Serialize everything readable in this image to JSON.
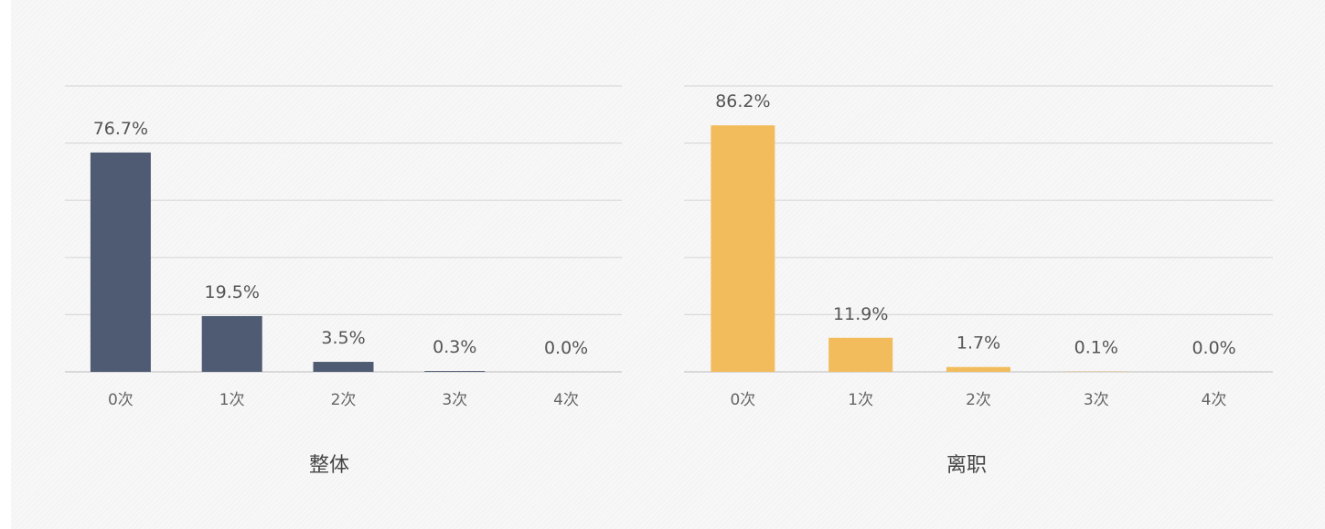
{
  "chart_data": [
    {
      "type": "bar",
      "title": "整体",
      "categories": [
        "0次",
        "1次",
        "2次",
        "3次",
        "4次"
      ],
      "values": [
        76.7,
        19.5,
        3.5,
        0.3,
        0.0
      ],
      "labels": [
        "76.7%",
        "19.5%",
        "3.5%",
        "0.3%",
        "0.0%"
      ],
      "ylim": [
        0,
        100
      ],
      "gridlines": [
        0,
        20,
        40,
        60,
        80,
        100
      ],
      "grid": true,
      "color": "#4e5b72"
    },
    {
      "type": "bar",
      "title": "离职",
      "categories": [
        "0次",
        "1次",
        "2次",
        "3次",
        "4次"
      ],
      "values": [
        86.2,
        11.9,
        1.7,
        0.1,
        0.0
      ],
      "labels": [
        "86.2%",
        "11.9%",
        "1.7%",
        "0.1%",
        "0.0%"
      ],
      "ylim": [
        0,
        100
      ],
      "gridlines": [
        0,
        20,
        40,
        60,
        80,
        100
      ],
      "grid": true,
      "color": "#f2bc5c"
    }
  ]
}
